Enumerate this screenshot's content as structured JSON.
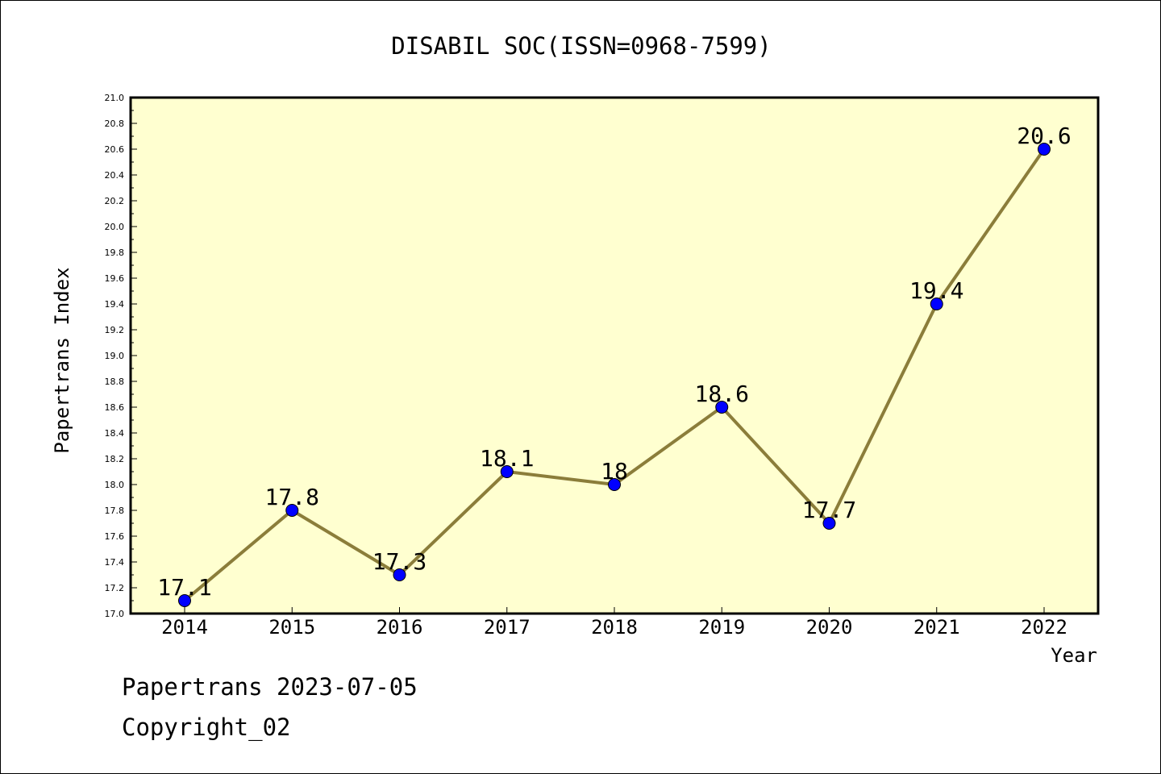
{
  "chart_data": {
    "type": "line",
    "title": "DISABIL SOC(ISSN=0968-7599)",
    "xlabel": "Year",
    "ylabel": "Papertrans Index",
    "categories": [
      "2014",
      "2015",
      "2016",
      "2017",
      "2018",
      "2019",
      "2020",
      "2021",
      "2022"
    ],
    "series": [
      {
        "values": [
          17.1,
          17.8,
          17.3,
          18.1,
          18.0,
          18.6,
          17.7,
          19.4,
          20.6
        ]
      }
    ],
    "data_labels": [
      "17.1",
      "17.8",
      "17.3",
      "18.1",
      "18",
      "18.6",
      "17.7",
      "19.4",
      "20.6"
    ],
    "ylim": [
      17.0,
      21.0
    ],
    "yticks": [
      "17.0",
      "17.2",
      "17.4",
      "17.6",
      "17.8",
      "18.0",
      "18.2",
      "18.4",
      "18.6",
      "18.8",
      "19.0",
      "19.2",
      "19.4",
      "19.6",
      "19.8",
      "20.0",
      "20.2",
      "20.4",
      "20.6",
      "20.8",
      "21.0"
    ],
    "grid": false,
    "colors": {
      "plot_background": "#ffffd0",
      "line": "#8b7d3a",
      "marker": "#0000ff"
    }
  },
  "footer": {
    "date_line": "Papertrans 2023-07-05",
    "copyright": "Copyright_02"
  }
}
